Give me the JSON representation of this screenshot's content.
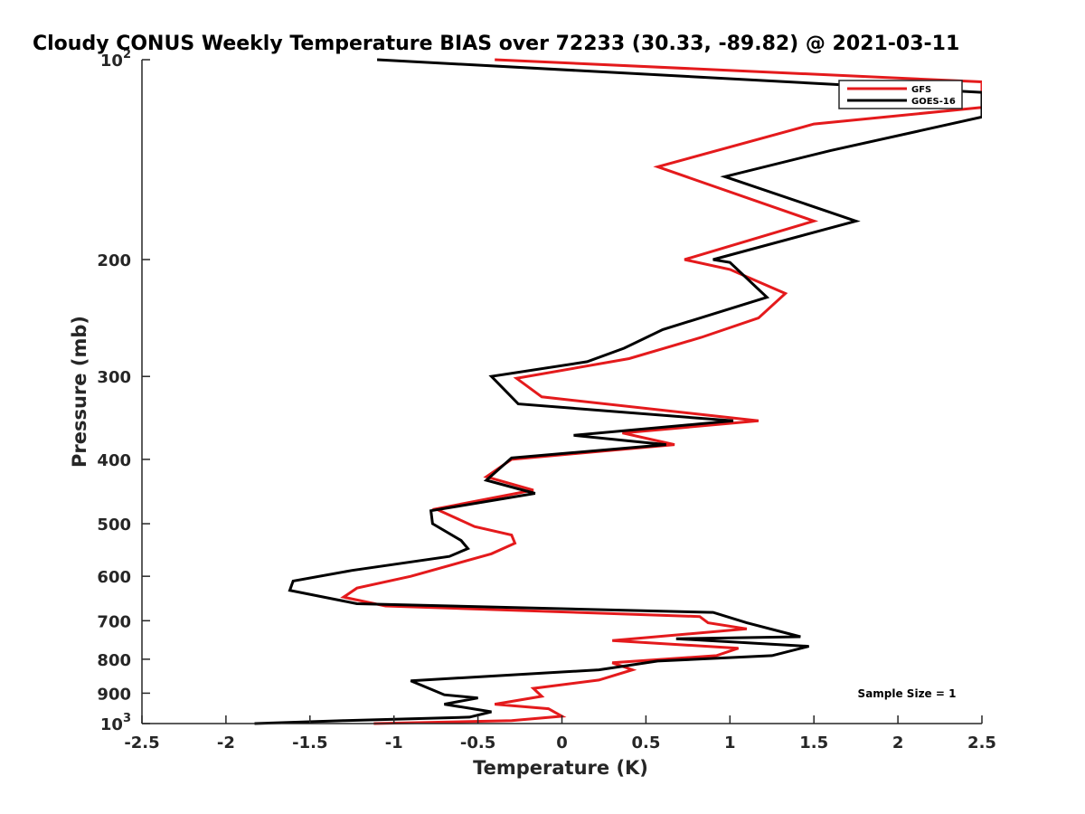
{
  "chart_data": {
    "type": "line",
    "title": "Cloudy CONUS Weekly Temperature BIAS over 72233 (30.33, -89.82) @ 2021-03-11",
    "xlabel": "Temperature (K)",
    "ylabel": "Pressure (mb)",
    "xlim": [
      -2.5,
      2.5
    ],
    "ylim": [
      100,
      1000
    ],
    "yscale": "log",
    "y_reversed": true,
    "x_ticks": [
      -2.5,
      -2,
      -1.5,
      -1,
      -0.5,
      0,
      0.5,
      1,
      1.5,
      2,
      2.5
    ],
    "x_tick_labels": [
      "-2.5",
      "-2",
      "-1.5",
      "-1",
      "-0.5",
      "0",
      "0.5",
      "1",
      "1.5",
      "2",
      "2.5"
    ],
    "y_ticks": [
      100,
      200,
      300,
      400,
      500,
      600,
      700,
      800,
      900,
      1000
    ],
    "y_tick_labels": [
      {
        "base": "10",
        "exp": "2"
      },
      {
        "base": "200",
        "exp": ""
      },
      {
        "base": "300",
        "exp": ""
      },
      {
        "base": "400",
        "exp": ""
      },
      {
        "base": "500",
        "exp": ""
      },
      {
        "base": "600",
        "exp": ""
      },
      {
        "base": "700",
        "exp": ""
      },
      {
        "base": "800",
        "exp": ""
      },
      {
        "base": "900",
        "exp": ""
      },
      {
        "base": "10",
        "exp": "3"
      }
    ],
    "grid": false,
    "legend_position": "top-right",
    "annotation": "Sample Size = 1",
    "series": [
      {
        "name": "GFS",
        "color": "#e41a1c",
        "points": [
          {
            "x": -0.4,
            "y": 100
          },
          {
            "x": 2.5,
            "y": 108
          },
          {
            "x": 2.5,
            "y": 118
          },
          {
            "x": 1.5,
            "y": 125
          },
          {
            "x": 0.57,
            "y": 145
          },
          {
            "x": 1.5,
            "y": 175
          },
          {
            "x": 0.73,
            "y": 200
          },
          {
            "x": 1.0,
            "y": 207
          },
          {
            "x": 1.33,
            "y": 225
          },
          {
            "x": 1.17,
            "y": 245
          },
          {
            "x": 0.83,
            "y": 262
          },
          {
            "x": 0.4,
            "y": 282
          },
          {
            "x": -0.27,
            "y": 302
          },
          {
            "x": -0.12,
            "y": 322
          },
          {
            "x": 1.17,
            "y": 350
          },
          {
            "x": 0.36,
            "y": 365
          },
          {
            "x": 0.67,
            "y": 380
          },
          {
            "x": -0.3,
            "y": 400
          },
          {
            "x": -0.45,
            "y": 425
          },
          {
            "x": -0.17,
            "y": 445
          },
          {
            "x": -0.75,
            "y": 475
          },
          {
            "x": -0.52,
            "y": 505
          },
          {
            "x": -0.3,
            "y": 520
          },
          {
            "x": -0.28,
            "y": 535
          },
          {
            "x": -0.42,
            "y": 555
          },
          {
            "x": -0.9,
            "y": 600
          },
          {
            "x": -1.22,
            "y": 625
          },
          {
            "x": -1.3,
            "y": 645
          },
          {
            "x": -1.05,
            "y": 665
          },
          {
            "x": 0.82,
            "y": 690
          },
          {
            "x": 0.87,
            "y": 705
          },
          {
            "x": 1.1,
            "y": 720
          },
          {
            "x": 0.3,
            "y": 750
          },
          {
            "x": 1.05,
            "y": 770
          },
          {
            "x": 0.92,
            "y": 790
          },
          {
            "x": 0.3,
            "y": 810
          },
          {
            "x": 0.42,
            "y": 830
          },
          {
            "x": 0.22,
            "y": 860
          },
          {
            "x": -0.17,
            "y": 885
          },
          {
            "x": -0.12,
            "y": 910
          },
          {
            "x": -0.4,
            "y": 935
          },
          {
            "x": -0.08,
            "y": 950
          },
          {
            "x": 0.0,
            "y": 975
          },
          {
            "x": -0.3,
            "y": 990
          },
          {
            "x": -1.12,
            "y": 1000
          }
        ]
      },
      {
        "name": "GOES-16",
        "color": "#000000",
        "points": [
          {
            "x": -1.1,
            "y": 100
          },
          {
            "x": 2.5,
            "y": 112
          },
          {
            "x": 2.5,
            "y": 122
          },
          {
            "x": 1.6,
            "y": 137
          },
          {
            "x": 0.97,
            "y": 150
          },
          {
            "x": 1.75,
            "y": 175
          },
          {
            "x": 0.9,
            "y": 200
          },
          {
            "x": 1.0,
            "y": 202
          },
          {
            "x": 1.22,
            "y": 228
          },
          {
            "x": 0.6,
            "y": 255
          },
          {
            "x": 0.37,
            "y": 272
          },
          {
            "x": 0.15,
            "y": 285
          },
          {
            "x": -0.42,
            "y": 300
          },
          {
            "x": -0.26,
            "y": 330
          },
          {
            "x": 1.02,
            "y": 350
          },
          {
            "x": 0.07,
            "y": 368
          },
          {
            "x": 0.62,
            "y": 380
          },
          {
            "x": -0.3,
            "y": 398
          },
          {
            "x": -0.45,
            "y": 430
          },
          {
            "x": -0.16,
            "y": 450
          },
          {
            "x": -0.78,
            "y": 478
          },
          {
            "x": -0.77,
            "y": 500
          },
          {
            "x": -0.6,
            "y": 530
          },
          {
            "x": -0.56,
            "y": 545
          },
          {
            "x": -0.67,
            "y": 560
          },
          {
            "x": -1.25,
            "y": 588
          },
          {
            "x": -1.6,
            "y": 610
          },
          {
            "x": -1.62,
            "y": 630
          },
          {
            "x": -1.22,
            "y": 660
          },
          {
            "x": 0.9,
            "y": 680
          },
          {
            "x": 1.1,
            "y": 705
          },
          {
            "x": 1.42,
            "y": 740
          },
          {
            "x": 0.68,
            "y": 745
          },
          {
            "x": 1.47,
            "y": 765
          },
          {
            "x": 1.25,
            "y": 790
          },
          {
            "x": 0.57,
            "y": 805
          },
          {
            "x": 0.22,
            "y": 830
          },
          {
            "x": -0.9,
            "y": 862
          },
          {
            "x": -0.7,
            "y": 905
          },
          {
            "x": -0.5,
            "y": 915
          },
          {
            "x": -0.7,
            "y": 935
          },
          {
            "x": -0.42,
            "y": 960
          },
          {
            "x": -0.55,
            "y": 978
          },
          {
            "x": -1.3,
            "y": 990
          },
          {
            "x": -1.83,
            "y": 1000
          }
        ]
      }
    ]
  }
}
